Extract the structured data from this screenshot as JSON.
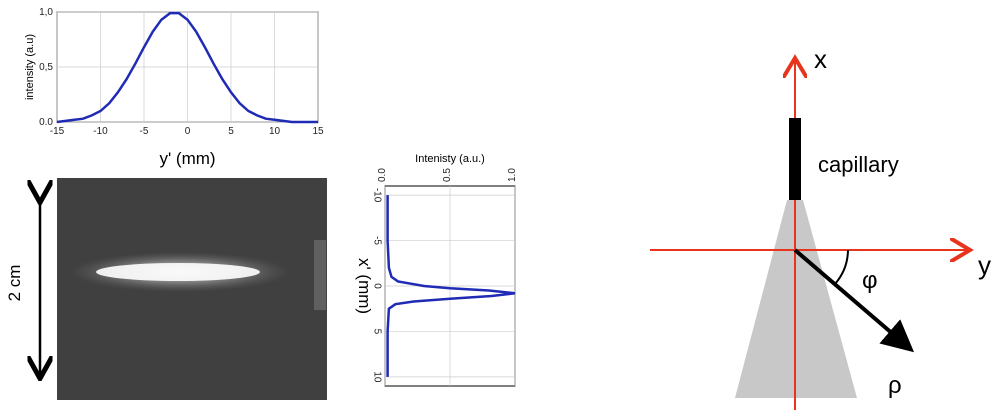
{
  "chart_data": [
    {
      "type": "line",
      "orientation": "horizontal",
      "color": "#1f2bb5",
      "grid": true,
      "ylabel": "intensity (a.u)",
      "xlabel": "y' (mm)",
      "x": [
        -15,
        -14,
        -13,
        -12,
        -11,
        -10,
        -9,
        -8,
        -7,
        -6,
        -5,
        -4,
        -3,
        -2,
        -1,
        0,
        1,
        2,
        3,
        4,
        5,
        6,
        7,
        8,
        9,
        10,
        11,
        12,
        13,
        14,
        15
      ],
      "values": [
        0.0,
        0.01,
        0.02,
        0.03,
        0.06,
        0.1,
        0.17,
        0.27,
        0.39,
        0.53,
        0.68,
        0.82,
        0.93,
        0.99,
        0.99,
        0.93,
        0.82,
        0.68,
        0.53,
        0.39,
        0.27,
        0.17,
        0.1,
        0.06,
        0.03,
        0.02,
        0.01,
        0.0,
        0.0,
        0.0,
        0.0
      ],
      "xlim": [
        -15,
        15
      ],
      "xticks": [
        -15,
        -10,
        -5,
        0,
        5,
        10,
        15
      ],
      "ylim": [
        0,
        1
      ],
      "yticks": [
        {
          "value": 0,
          "label": "0.0"
        },
        {
          "value": 0.5,
          "label": "0,5"
        },
        {
          "value": 1,
          "label": "1,0"
        }
      ]
    },
    {
      "type": "line",
      "orientation": "vertical",
      "color": "#1f2bb5",
      "grid": true,
      "ylabel": "Intenisty (a.u.)",
      "xlabel": "x' (mm)",
      "x": [
        -10,
        -5,
        -2,
        -1,
        -0.5,
        0,
        0.25,
        0.5,
        0.8,
        1.1,
        1.4,
        1.7,
        2,
        2.5,
        5,
        10
      ],
      "values": [
        0.02,
        0.02,
        0.03,
        0.05,
        0.1,
        0.3,
        0.5,
        0.8,
        1.0,
        0.82,
        0.5,
        0.22,
        0.08,
        0.03,
        0.02,
        0.02
      ],
      "xlim": [
        -11,
        11
      ],
      "xticks": [
        -10,
        -5,
        0,
        5,
        10
      ],
      "ylim": [
        0,
        1
      ],
      "yticks": [
        {
          "value": 0,
          "label": "0.0"
        },
        {
          "value": 0.5,
          "label": "0.5"
        },
        {
          "value": 1,
          "label": "1.0"
        }
      ]
    }
  ],
  "photo": {
    "scale_label": "2 cm"
  },
  "diagram": {
    "x_axis": "x",
    "y_axis": "y",
    "capillary": "capillary",
    "angle": "φ",
    "radius": "ρ"
  }
}
